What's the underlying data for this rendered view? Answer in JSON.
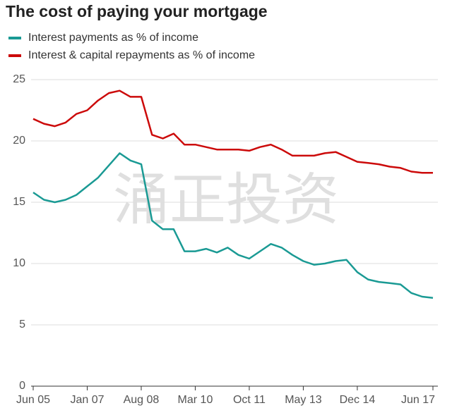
{
  "chart_data": {
    "type": "line",
    "title": "The cost of paying your mortgage",
    "watermark": "涌正投资",
    "categories": [
      "Jun 05",
      null,
      null,
      null,
      null,
      "Jan 07",
      null,
      null,
      null,
      null,
      "Aug 08",
      null,
      null,
      null,
      null,
      "Mar 10",
      null,
      null,
      null,
      null,
      "Oct 11",
      null,
      null,
      null,
      null,
      "May 13",
      null,
      null,
      null,
      null,
      "Dec 14",
      null,
      null,
      null,
      null,
      null,
      null,
      "Jun 17"
    ],
    "series": [
      {
        "name": "Interest payments as % of income",
        "color": "#1a9a94",
        "values": [
          15.8,
          15.2,
          15.0,
          15.2,
          15.6,
          16.3,
          17.0,
          18.0,
          19.0,
          18.4,
          18.1,
          13.5,
          12.8,
          12.8,
          11.0,
          11.0,
          11.2,
          10.9,
          11.3,
          10.7,
          10.4,
          11.0,
          11.6,
          11.3,
          10.7,
          10.2,
          9.9,
          10.0,
          10.2,
          10.3,
          9.3,
          8.7,
          8.5,
          8.4,
          8.3,
          7.6,
          7.3,
          7.2
        ]
      },
      {
        "name": "Interest & capital repayments as % of income",
        "color": "#cc0a0a",
        "values": [
          21.8,
          21.4,
          21.2,
          21.5,
          22.2,
          22.5,
          23.3,
          23.9,
          24.1,
          23.6,
          23.6,
          20.5,
          20.2,
          20.6,
          19.7,
          19.7,
          19.5,
          19.3,
          19.3,
          19.3,
          19.2,
          19.5,
          19.7,
          19.3,
          18.8,
          18.8,
          18.8,
          19.0,
          19.1,
          18.7,
          18.3,
          18.2,
          18.1,
          17.9,
          17.8,
          17.5,
          17.4,
          17.4
        ]
      }
    ],
    "ylim": [
      0,
      25
    ],
    "yticks": [
      0,
      5,
      10,
      15,
      20,
      25
    ],
    "grid": true
  }
}
